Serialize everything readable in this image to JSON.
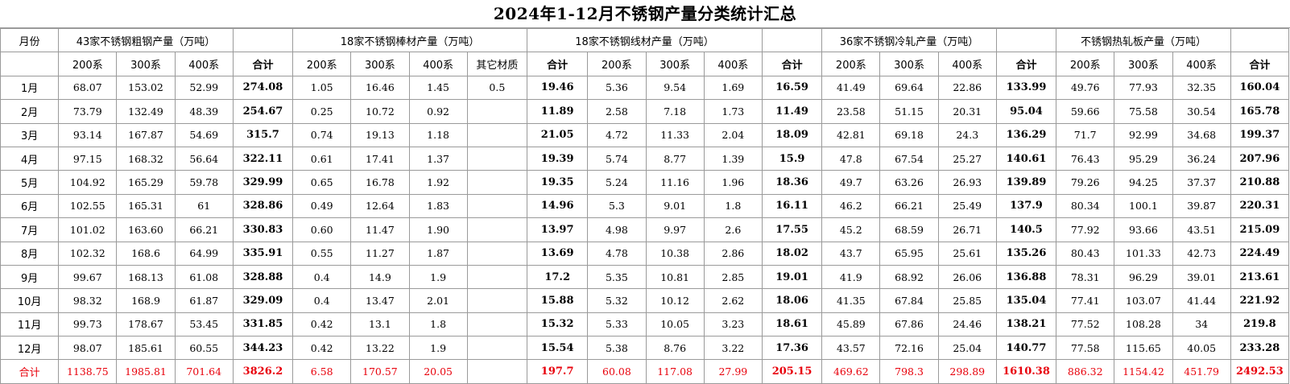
{
  "title": "2024年1-12月不锈钢产量分类统计汇总",
  "header": {
    "month_label": "月份",
    "groups": [
      {
        "label": "43家不锈钢粗钢产量（万吨）",
        "subs": [
          "200系",
          "300系",
          "400系",
          "合计"
        ]
      },
      {
        "label": "18家不锈钢棒材产量（万吨）",
        "subs": [
          "200系",
          "300系",
          "400系",
          "其它材质",
          "合计"
        ]
      },
      {
        "label": "18家不锈钢线材产量（万吨）",
        "subs": [
          "200系",
          "300系",
          "400系",
          "合计"
        ]
      },
      {
        "label": "36家不锈钢冷轧产量（万吨）",
        "subs": [
          "200系",
          "300系",
          "400系",
          "合计"
        ]
      },
      {
        "label": "不锈钢热轧板产量（万吨）",
        "subs": [
          "200系",
          "300系",
          "400系",
          "合计"
        ]
      }
    ]
  },
  "rows": [
    {
      "month": "1月",
      "vals": [
        "68.07",
        "153.02",
        "52.99",
        "274.08",
        "1.05",
        "16.46",
        "1.45",
        "0.5",
        "19.46",
        "5.36",
        "9.54",
        "1.69",
        "16.59",
        "41.49",
        "69.64",
        "22.86",
        "133.99",
        "49.76",
        "77.93",
        "32.35",
        "160.04"
      ]
    },
    {
      "month": "2月",
      "vals": [
        "73.79",
        "132.49",
        "48.39",
        "254.67",
        "0.25",
        "10.72",
        "0.92",
        "",
        "11.89",
        "2.58",
        "7.18",
        "1.73",
        "11.49",
        "23.58",
        "51.15",
        "20.31",
        "95.04",
        "59.66",
        "75.58",
        "30.54",
        "165.78"
      ]
    },
    {
      "month": "3月",
      "vals": [
        "93.14",
        "167.87",
        "54.69",
        "315.7",
        "0.74",
        "19.13",
        "1.18",
        "",
        "21.05",
        "4.72",
        "11.33",
        "2.04",
        "18.09",
        "42.81",
        "69.18",
        "24.3",
        "136.29",
        "71.7",
        "92.99",
        "34.68",
        "199.37"
      ]
    },
    {
      "month": "4月",
      "vals": [
        "97.15",
        "168.32",
        "56.64",
        "322.11",
        "0.61",
        "17.41",
        "1.37",
        "",
        "19.39",
        "5.74",
        "8.77",
        "1.39",
        "15.9",
        "47.8",
        "67.54",
        "25.27",
        "140.61",
        "76.43",
        "95.29",
        "36.24",
        "207.96"
      ]
    },
    {
      "month": "5月",
      "vals": [
        "104.92",
        "165.29",
        "59.78",
        "329.99",
        "0.65",
        "16.78",
        "1.92",
        "",
        "19.35",
        "5.24",
        "11.16",
        "1.96",
        "18.36",
        "49.7",
        "63.26",
        "26.93",
        "139.89",
        "79.26",
        "94.25",
        "37.37",
        "210.88"
      ]
    },
    {
      "month": "6月",
      "vals": [
        "102.55",
        "165.31",
        "61",
        "328.86",
        "0.49",
        "12.64",
        "1.83",
        "",
        "14.96",
        "5.3",
        "9.01",
        "1.8",
        "16.11",
        "46.2",
        "66.21",
        "25.49",
        "137.9",
        "80.34",
        "100.1",
        "39.87",
        "220.31"
      ]
    },
    {
      "month": "7月",
      "vals": [
        "101.02",
        "163.60",
        "66.21",
        "330.83",
        "0.60",
        "11.47",
        "1.90",
        "",
        "13.97",
        "4.98",
        "9.97",
        "2.6",
        "17.55",
        "45.2",
        "68.59",
        "26.71",
        "140.5",
        "77.92",
        "93.66",
        "43.51",
        "215.09"
      ]
    },
    {
      "month": "8月",
      "vals": [
        "102.32",
        "168.6",
        "64.99",
        "335.91",
        "0.55",
        "11.27",
        "1.87",
        "",
        "13.69",
        "4.78",
        "10.38",
        "2.86",
        "18.02",
        "43.7",
        "65.95",
        "25.61",
        "135.26",
        "80.43",
        "101.33",
        "42.73",
        "224.49"
      ]
    },
    {
      "month": "9月",
      "vals": [
        "99.67",
        "168.13",
        "61.08",
        "328.88",
        "0.4",
        "14.9",
        "1.9",
        "",
        "17.2",
        "5.35",
        "10.81",
        "2.85",
        "19.01",
        "41.9",
        "68.92",
        "26.06",
        "136.88",
        "78.31",
        "96.29",
        "39.01",
        "213.61"
      ]
    },
    {
      "month": "10月",
      "vals": [
        "98.32",
        "168.9",
        "61.87",
        "329.09",
        "0.4",
        "13.47",
        "2.01",
        "",
        "15.88",
        "5.32",
        "10.12",
        "2.62",
        "18.06",
        "41.35",
        "67.84",
        "25.85",
        "135.04",
        "77.41",
        "103.07",
        "41.44",
        "221.92"
      ]
    },
    {
      "month": "11月",
      "vals": [
        "99.73",
        "178.67",
        "53.45",
        "331.85",
        "0.42",
        "13.1",
        "1.8",
        "",
        "15.32",
        "5.33",
        "10.05",
        "3.23",
        "18.61",
        "45.89",
        "67.86",
        "24.46",
        "138.21",
        "77.52",
        "108.28",
        "34",
        "219.8"
      ]
    },
    {
      "month": "12月",
      "vals": [
        "98.07",
        "185.61",
        "60.55",
        "344.23",
        "0.42",
        "13.22",
        "1.9",
        "",
        "15.54",
        "5.38",
        "8.76",
        "3.22",
        "17.36",
        "43.57",
        "72.16",
        "25.04",
        "140.77",
        "77.58",
        "115.65",
        "40.05",
        "233.28"
      ]
    }
  ],
  "total": {
    "month": "合计",
    "vals": [
      "1138.75",
      "1985.81",
      "701.64",
      "3826.2",
      "6.58",
      "170.57",
      "20.05",
      "",
      "197.7",
      "60.08",
      "117.08",
      "27.99",
      "205.15",
      "469.62",
      "798.3",
      "298.89",
      "1610.38",
      "886.32",
      "1154.42",
      "451.79",
      "2492.53"
    ]
  },
  "colors": {
    "total_text": "#e8000b",
    "grid": "#9a9a9a"
  }
}
